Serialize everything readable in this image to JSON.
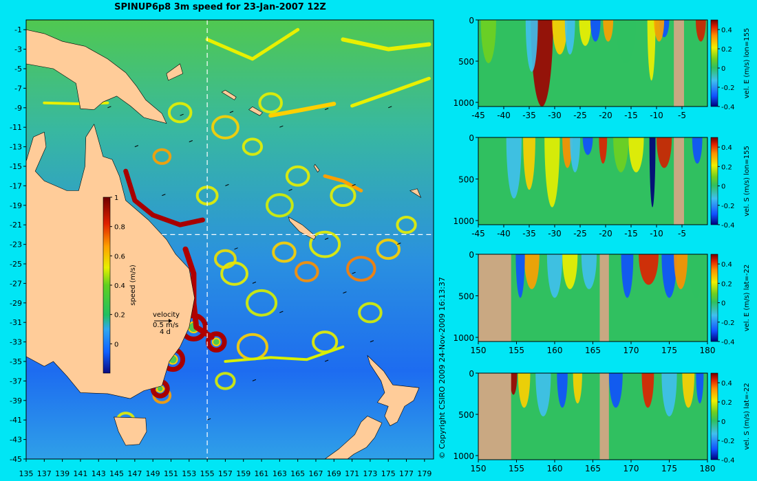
{
  "title": "SPINUP6p8 3m speed for 23-Jan-2007 12Z",
  "copyright": "© Copyright CSIRO 2009   24-Nov-2009 16:13:37",
  "colors": {
    "background": "#00e6f5",
    "land": "#ffcc99",
    "land_panel": "#c9a882"
  },
  "map": {
    "x_ticks": [
      135,
      137,
      139,
      141,
      143,
      145,
      147,
      149,
      151,
      153,
      155,
      157,
      159,
      161,
      163,
      165,
      167,
      169,
      171,
      173,
      175,
      177,
      179
    ],
    "y_ticks": [
      -1,
      -3,
      -5,
      -7,
      -9,
      -11,
      -13,
      -15,
      -17,
      -19,
      -21,
      -23,
      -25,
      -27,
      -29,
      -31,
      -33,
      -35,
      -37,
      -39,
      -41,
      -43,
      -45
    ],
    "xlim": [
      135,
      180
    ],
    "ylim": [
      -45,
      0
    ],
    "section_lon": 155,
    "section_lat": -22,
    "colorbar": {
      "label": "speed (m/s)",
      "ticks": [
        "1",
        "0.8",
        "0.6",
        "0.4",
        "0.2",
        "0"
      ],
      "range": [
        -0.2,
        1
      ]
    },
    "velocity_key": {
      "title": "velocity",
      "speed": "0.5 m/s",
      "period": "4 d"
    }
  },
  "chart_data": [
    {
      "type": "heatmap",
      "name": "vel. E (m/s) lon=155",
      "xlabel": "",
      "ylabel": "",
      "x_ticks": [
        "-45",
        "-40",
        "-35",
        "-30",
        "-25",
        "-20",
        "-15",
        "-10",
        "-5"
      ],
      "xlim": [
        -45,
        0
      ],
      "y_ticks": [
        "0",
        "500",
        "1000"
      ],
      "ylim": [
        1050,
        0
      ],
      "colorbar": {
        "label": "vel. E (m/s) lon=155",
        "ticks": [
          "0.4",
          "0.2",
          "0",
          "-0.2",
          "-0.4"
        ],
        "range": [
          -0.4,
          0.5
        ]
      },
      "land_x": [
        [
          -6.6,
          -4.6
        ]
      ]
    },
    {
      "type": "heatmap",
      "name": "vel. S (m/s) lon=155",
      "xlabel": "",
      "ylabel": "",
      "x_ticks": [
        "-45",
        "-40",
        "-35",
        "-30",
        "-25",
        "-20",
        "-15",
        "-10",
        "-5"
      ],
      "xlim": [
        -45,
        0
      ],
      "y_ticks": [
        "0",
        "500",
        "1000"
      ],
      "ylim": [
        1050,
        0
      ],
      "colorbar": {
        "label": "vel. S (m/s) lon=155",
        "ticks": [
          "0.4",
          "0.2",
          "0",
          "-0.2",
          "-0.4"
        ],
        "range": [
          -0.4,
          0.5
        ]
      },
      "land_x": [
        [
          -6.6,
          -4.6
        ]
      ]
    },
    {
      "type": "heatmap",
      "name": "vel. E (m/s) lat=-22",
      "xlabel": "",
      "ylabel": "",
      "x_ticks": [
        "150",
        "155",
        "160",
        "165",
        "170",
        "175",
        "180"
      ],
      "xlim": [
        150,
        180
      ],
      "y_ticks": [
        "0",
        "500",
        "1000"
      ],
      "ylim": [
        1050,
        0
      ],
      "colorbar": {
        "label": "vel. E (m/s) lat=-22",
        "ticks": [
          "0.4",
          "0.2",
          "0",
          "-0.2",
          "-0.4"
        ],
        "range": [
          -0.4,
          0.5
        ]
      },
      "land_x": [
        [
          150,
          154.3
        ],
        [
          165.9,
          167.1
        ]
      ]
    },
    {
      "type": "heatmap",
      "name": "vel. S (m/s) lat=-22",
      "xlabel": "",
      "ylabel": "",
      "x_ticks": [
        "150",
        "155",
        "160",
        "165",
        "170",
        "175",
        "180"
      ],
      "xlim": [
        150,
        180
      ],
      "y_ticks": [
        "0",
        "500",
        "1000"
      ],
      "ylim": [
        1050,
        0
      ],
      "colorbar": {
        "label": "vel. S (m/s) lat=-22",
        "ticks": [
          "0.4",
          "0.2",
          "0",
          "-0.2",
          "-0.4"
        ],
        "range": [
          -0.4,
          0.5
        ]
      },
      "land_x": [
        [
          150,
          154.3
        ],
        [
          165.9,
          167.1
        ]
      ]
    }
  ]
}
